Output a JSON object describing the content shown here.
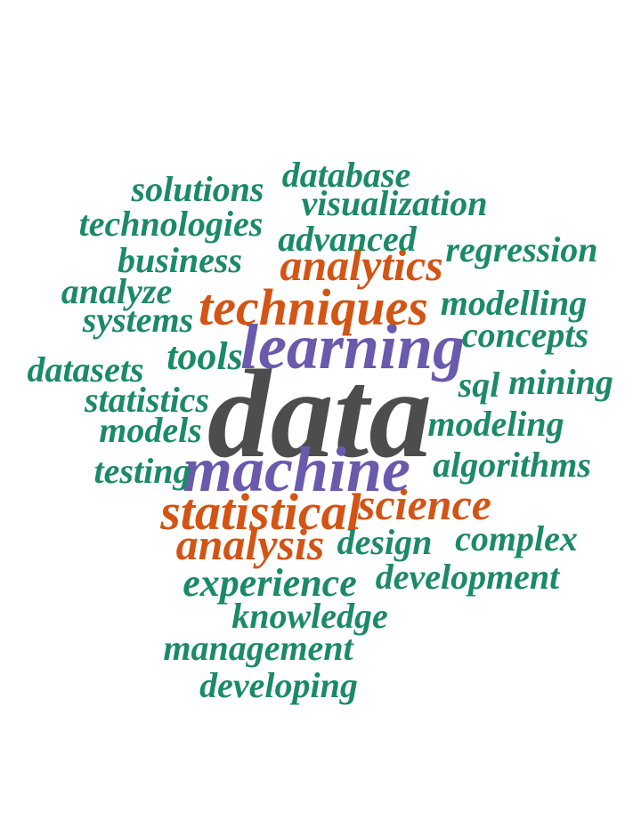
{
  "colors": {
    "green": "#1b8a66",
    "orange": "#d35414",
    "purple": "#6a5aad",
    "gray": "#4d4d4d"
  },
  "words": [
    {
      "text": "data",
      "color": "gray"
    },
    {
      "text": "machine",
      "color": "purple"
    },
    {
      "text": "learning",
      "color": "purple"
    },
    {
      "text": "statistical",
      "color": "orange"
    },
    {
      "text": "techniques",
      "color": "orange"
    },
    {
      "text": "analytics",
      "color": "orange"
    },
    {
      "text": "analysis",
      "color": "orange"
    },
    {
      "text": "science",
      "color": "orange"
    },
    {
      "text": "database",
      "color": "green"
    },
    {
      "text": "solutions",
      "color": "green"
    },
    {
      "text": "visualization",
      "color": "green"
    },
    {
      "text": "technologies",
      "color": "green"
    },
    {
      "text": "advanced",
      "color": "green"
    },
    {
      "text": "regression",
      "color": "green"
    },
    {
      "text": "business",
      "color": "green"
    },
    {
      "text": "analyze",
      "color": "green"
    },
    {
      "text": "modelling",
      "color": "green"
    },
    {
      "text": "systems",
      "color": "green"
    },
    {
      "text": "concepts",
      "color": "green"
    },
    {
      "text": "tools",
      "color": "green"
    },
    {
      "text": "datasets",
      "color": "green"
    },
    {
      "text": "sql",
      "color": "green"
    },
    {
      "text": "mining",
      "color": "green"
    },
    {
      "text": "statistics",
      "color": "green"
    },
    {
      "text": "models",
      "color": "green"
    },
    {
      "text": "modeling",
      "color": "green"
    },
    {
      "text": "algorithms",
      "color": "green"
    },
    {
      "text": "testing",
      "color": "green"
    },
    {
      "text": "design",
      "color": "green"
    },
    {
      "text": "complex",
      "color": "green"
    },
    {
      "text": "development",
      "color": "green"
    },
    {
      "text": "experience",
      "color": "green"
    },
    {
      "text": "knowledge",
      "color": "green"
    },
    {
      "text": "management",
      "color": "green"
    },
    {
      "text": "developing",
      "color": "green"
    }
  ]
}
